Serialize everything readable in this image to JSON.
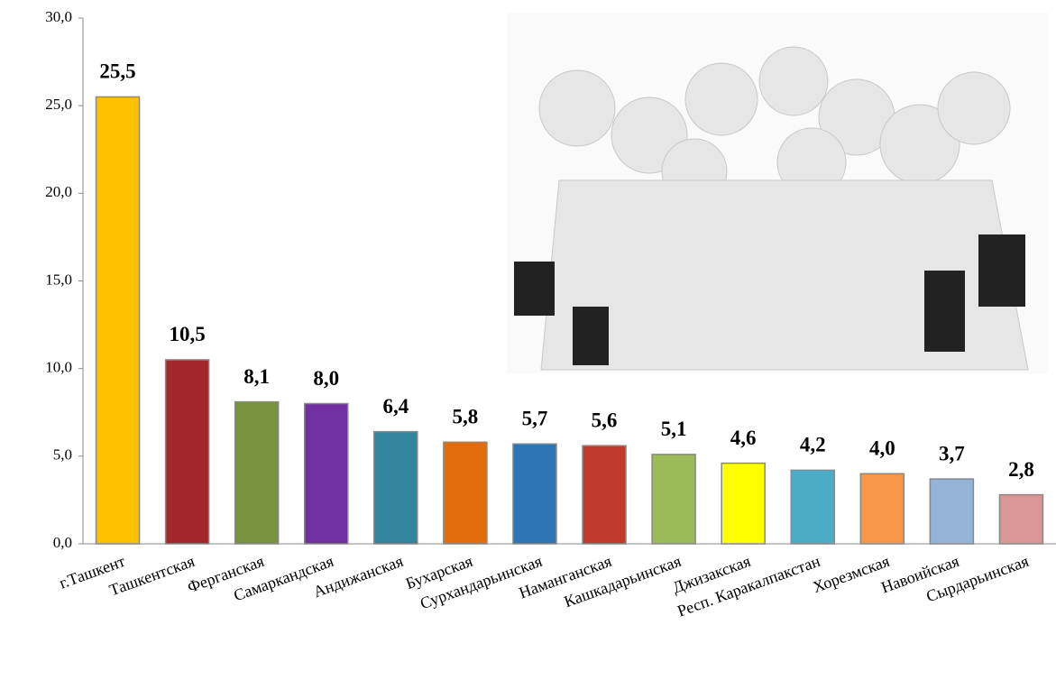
{
  "chart_data": {
    "type": "bar",
    "categories": [
      "г.Ташкент",
      "Ташкентская",
      "Ферганская",
      "Самаркандская",
      "Андижанская",
      "Бухарская",
      "Сурхандарьинская",
      "Наманганская",
      "Кашкадарьинская",
      "Джизакская",
      "Респ. Каракалпакстан",
      "Хорезмская",
      "Навоийская",
      "Сырдарьинская"
    ],
    "values": [
      25.5,
      10.5,
      8.1,
      8.0,
      6.4,
      5.8,
      5.7,
      5.6,
      5.1,
      4.6,
      4.2,
      4.0,
      3.7,
      2.8
    ],
    "value_labels": [
      "25,5",
      "10,5",
      "8,1",
      "8,0",
      "6,4",
      "5,8",
      "5,7",
      "5,6",
      "5,1",
      "4,6",
      "4,2",
      "4,0",
      "3,7",
      "2,8"
    ],
    "colors": [
      "#ffc000",
      "#a0282d",
      "#77933c",
      "#7030a0",
      "#31849b",
      "#e46c0a",
      "#2e75b6",
      "#c0392b",
      "#9bbb59",
      "#ffff00",
      "#4bacc6",
      "#f79646",
      "#95b3d7",
      "#d99694"
    ],
    "ylim": [
      0,
      30
    ],
    "yticks": [
      {
        "value": 0,
        "label": "0,0"
      },
      {
        "value": 5,
        "label": "5,0"
      },
      {
        "value": 10,
        "label": "10,0"
      },
      {
        "value": 15,
        "label": "15,0"
      },
      {
        "value": 20,
        "label": "20,0"
      },
      {
        "value": 25,
        "label": "25,0"
      },
      {
        "value": 30,
        "label": "30,0"
      }
    ],
    "grid": false
  }
}
